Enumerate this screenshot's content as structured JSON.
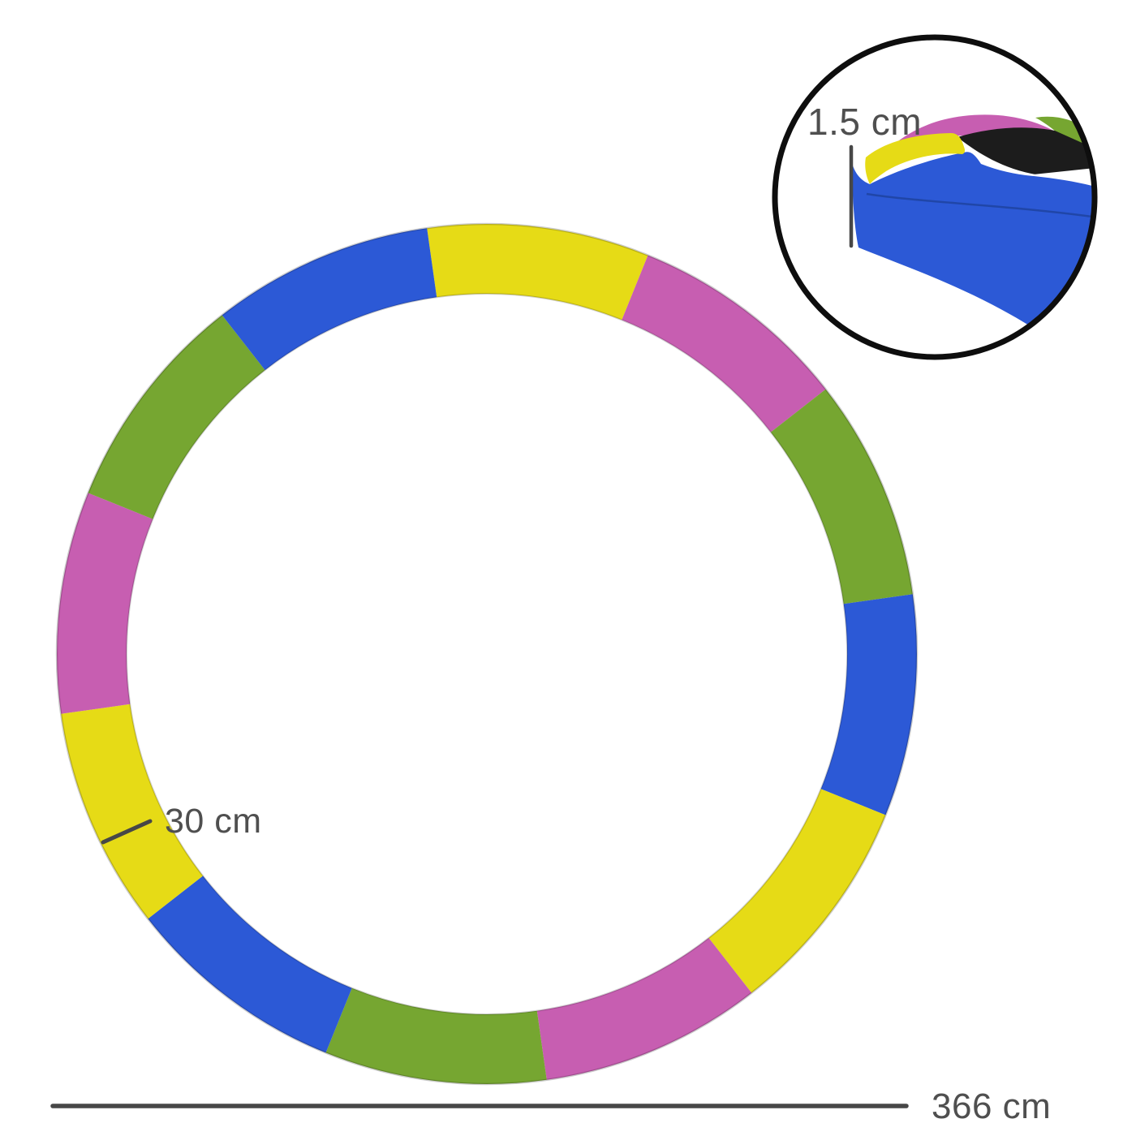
{
  "diagram": {
    "subject": "Round trampoline safety pad spring cover with multicolour segments",
    "annotations": {
      "thickness": {
        "label": "1.5 cm"
      },
      "pad_width": {
        "label": "30 cm"
      },
      "outer_diameter": {
        "label": "366 cm"
      }
    },
    "colors": {
      "yellow": "#e6db16",
      "pink": "#c75eb1",
      "green": "#76a631",
      "blue": "#2c59d6",
      "mat_black": "#1c1c1c",
      "white": "#ffffff",
      "outline_black": "#0e0e0e",
      "measure_line": "#474747",
      "text_gray": "#4f4f4f",
      "crease_blue": "#1e43a0"
    },
    "ring": {
      "segment_count": 12,
      "segment_arc_deg": 30,
      "start_angle_deg": -8,
      "segment_order_clockwise_from_top": [
        "yellow",
        "pink",
        "green",
        "blue",
        "yellow",
        "pink",
        "green",
        "blue",
        "yellow",
        "pink",
        "green",
        "blue"
      ]
    }
  }
}
